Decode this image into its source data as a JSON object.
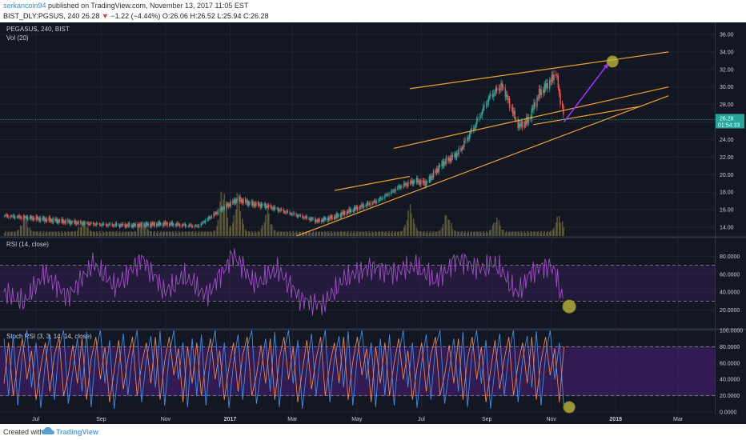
{
  "publisher": {
    "author": "serkancoin94",
    "rest": " published on TradingView.com, November 13, 2017 11:05 EST",
    "ticker_line_a": "BIST_DLY:PGSUS, 240  26.28 ",
    "change_arrow": "▼",
    "ticker_line_b": " −1.22 (−4.44%) O:26.06 H:26.52 L:25.94 C:26.28"
  },
  "footer": {
    "created_with": "Created with",
    "brand": "TradingView"
  },
  "colors": {
    "background": "#131722",
    "candle_up": "#26a69a",
    "candle_down": "#ef5350",
    "volume": "#6f6744",
    "trendline": "#f0a030",
    "arrow": "#9b30ff",
    "rsi_line": "#9c4fc2",
    "rsi_band": "#3a1e5a",
    "stoch_k": "#3f8de6",
    "stoch_d": "#e8844c",
    "stoch_band": "#4a1f7a",
    "marker": "#c8c040"
  },
  "price_panel": {
    "symbol_label": "PEGASUS, 240, BIST",
    "volume_label": "Vol (20)",
    "y_ticks": [
      "36.00",
      "34.00",
      "32.00",
      "30.00",
      "28.00",
      "26.00",
      "24.00",
      "22.00",
      "20.00",
      "18.00",
      "16.00",
      "14.00"
    ],
    "last_price": "26.28",
    "countdown": "01:54:33"
  },
  "rsi_panel": {
    "label": "RSI (14, close)",
    "y_ticks": [
      "80.0000",
      "60.0000",
      "40.0000",
      "20.0000"
    ]
  },
  "stoch_panel": {
    "label": "Stoch RSI (3, 3, 14, 14, close)",
    "y_ticks": [
      "100.0000",
      "80.0000",
      "60.0000",
      "40.0000",
      "20.0000",
      "0.0000"
    ]
  },
  "x_ticks": [
    "Jul",
    "Sep",
    "Nov",
    "2017",
    "Mar",
    "May",
    "Jul",
    "Sep",
    "Nov",
    "2018",
    "Mar"
  ],
  "chart_data": {
    "type": "line",
    "title": "PEGASUS, 240, BIST",
    "x_range": [
      "2016-06",
      "2018-04"
    ],
    "price": {
      "ylim": [
        13,
        37
      ],
      "series": [
        {
          "name": "PEGASUS",
          "x": [
            "2016-06-01",
            "2016-07-01",
            "2016-08-01",
            "2016-09-01",
            "2016-10-01",
            "2016-11-01",
            "2016-12-01",
            "2016-12-25",
            "2017-01-08",
            "2017-01-20",
            "2017-02-05",
            "2017-03-01",
            "2017-03-25",
            "2017-04-10",
            "2017-05-01",
            "2017-05-20",
            "2017-06-10",
            "2017-06-25",
            "2017-07-05",
            "2017-07-20",
            "2017-08-05",
            "2017-08-20",
            "2017-09-03",
            "2017-09-15",
            "2017-10-01",
            "2017-10-10",
            "2017-10-20",
            "2017-10-30",
            "2017-11-05",
            "2017-11-13"
          ],
          "values": [
            15.3,
            15.0,
            14.6,
            14.3,
            14.2,
            14.4,
            14.1,
            16.2,
            17.2,
            16.7,
            16.4,
            15.5,
            14.7,
            15.2,
            16.2,
            17.0,
            18.6,
            19.3,
            19.0,
            21.2,
            22.5,
            25.5,
            28.8,
            30.2,
            25.5,
            26.2,
            29.2,
            30.5,
            31.6,
            26.28
          ]
        }
      ]
    },
    "volume": {
      "peaks": [
        {
          "x": "2016-06-20",
          "value": 0.3
        },
        {
          "x": "2016-08-15",
          "value": 0.25
        },
        {
          "x": "2016-10-10",
          "value": 0.2
        },
        {
          "x": "2016-12-25",
          "value": 1.0
        },
        {
          "x": "2017-01-08",
          "value": 0.8
        },
        {
          "x": "2017-02-05",
          "value": 0.45
        },
        {
          "x": "2017-06-20",
          "value": 0.55
        },
        {
          "x": "2017-07-25",
          "value": 0.4
        },
        {
          "x": "2017-09-10",
          "value": 0.3
        },
        {
          "x": "2017-11-08",
          "value": 0.35
        }
      ]
    },
    "trendlines": [
      {
        "from": {
          "x": "2017-06-20",
          "y": 29.8
        },
        "to": {
          "x": "2018-02-20",
          "y": 34.0
        }
      },
      {
        "from": {
          "x": "2017-06-05",
          "y": 23.0
        },
        "to": {
          "x": "2018-02-20",
          "y": 30.0
        }
      },
      {
        "from": {
          "x": "2017-04-10",
          "y": 18.2
        },
        "to": {
          "x": "2017-06-20",
          "y": 19.8
        }
      },
      {
        "from": {
          "x": "2017-03-05",
          "y": 13.0
        },
        "to": {
          "x": "2018-02-20",
          "y": 29.0
        }
      },
      {
        "from": {
          "x": "2017-10-15",
          "y": 25.7
        },
        "to": {
          "x": "2018-01-25",
          "y": 27.8
        }
      }
    ],
    "projection_arrow": {
      "from": {
        "x": "2017-11-13",
        "y": 26.0
      },
      "to": {
        "x": "2017-12-25",
        "y": 32.7
      }
    },
    "target_marker": {
      "x": "2017-12-29",
      "y": 32.9
    },
    "rsi": {
      "ylim": [
        0,
        100
      ],
      "overbought": 70,
      "oversold": 30,
      "series": [
        {
          "name": "RSI",
          "x": [
            "2016-06-01",
            "2016-06-20",
            "2016-07-10",
            "2016-08-01",
            "2016-08-25",
            "2016-09-15",
            "2016-10-10",
            "2016-11-01",
            "2016-11-20",
            "2016-12-10",
            "2017-01-05",
            "2017-01-25",
            "2017-02-15",
            "2017-03-10",
            "2017-03-30",
            "2017-04-20",
            "2017-05-15",
            "2017-06-05",
            "2017-06-25",
            "2017-07-15",
            "2017-08-05",
            "2017-08-25",
            "2017-09-10",
            "2017-09-30",
            "2017-10-15",
            "2017-10-30",
            "2017-11-06",
            "2017-11-13"
          ],
          "values": [
            40,
            28,
            62,
            35,
            72,
            45,
            78,
            40,
            58,
            36,
            82,
            48,
            66,
            32,
            25,
            55,
            68,
            62,
            70,
            52,
            78,
            66,
            72,
            38,
            64,
            70,
            60,
            28
          ]
        }
      ]
    },
    "rsi_marker": {
      "x": "2017-11-18",
      "y": 24
    },
    "stoch_rsi": {
      "ylim": [
        0,
        100
      ],
      "band": [
        20,
        80
      ],
      "k_series": {
        "name": "K",
        "values": [
          90,
          20,
          95,
          8,
          70,
          100,
          30,
          85,
          5,
          60,
          95,
          15,
          80,
          100,
          10,
          50,
          90,
          25,
          98,
          6,
          75,
          100,
          35,
          88,
          4,
          55,
          96,
          20,
          72,
          100,
          12,
          64,
          93,
          30,
          99,
          8,
          70,
          100,
          40,
          85,
          6
        ]
      },
      "d_series": {
        "name": "D",
        "values": [
          80,
          35,
          85,
          20,
          60,
          90,
          40,
          75,
          15,
          55,
          85,
          25,
          70,
          92,
          20,
          45,
          82,
          35,
          90,
          15,
          65,
          92,
          40,
          80,
          12,
          50,
          88,
          28,
          65,
          92,
          20,
          58,
          85,
          35,
          92,
          15,
          62,
          92,
          45,
          78,
          12
        ]
      }
    },
    "stoch_marker": {
      "x": "2017-11-18",
      "y": 2
    }
  }
}
